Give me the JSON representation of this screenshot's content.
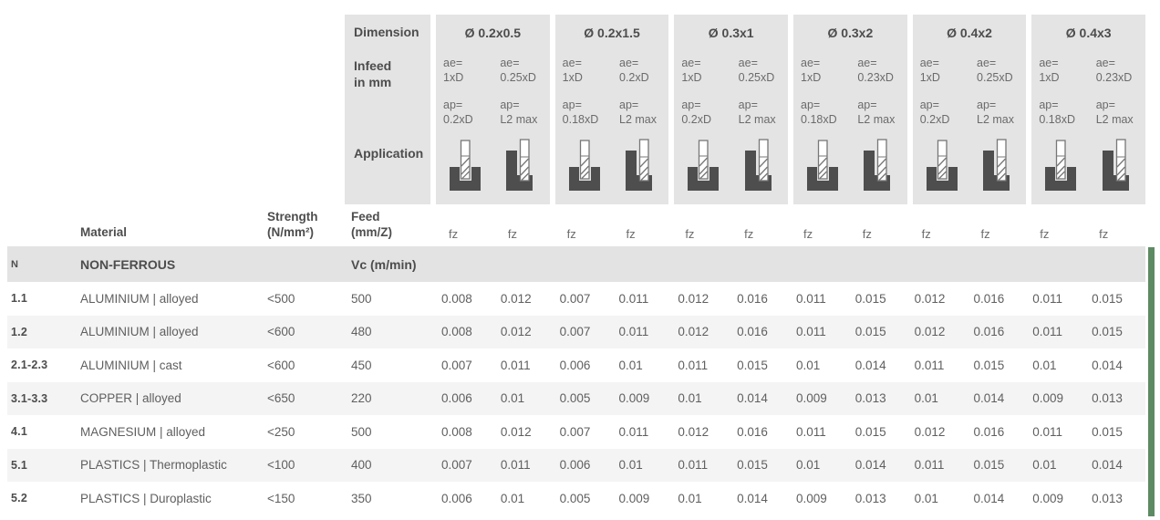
{
  "colors": {
    "accent_green": "#5d8a63",
    "header_bg": "#e4e4e4",
    "section_bg": "#e3e3e3",
    "stripe_bg": "#f4f4f4",
    "icon_dark": "#4e4e4e"
  },
  "header": {
    "dimension_label": "Dimension",
    "infeed_label_line1": "Infeed",
    "infeed_label_line2": "in mm",
    "application_label": "Application",
    "groups": [
      {
        "dimension": "Ø 0.2x0.5",
        "columns": [
          {
            "ae_label": "ae=",
            "ae_value": "1xD",
            "ap_label": "ap=",
            "ap_value": "0.2xD",
            "icon": "slot-milling-icon"
          },
          {
            "ae_label": "ae=",
            "ae_value": "0.25xD",
            "ap_label": "ap=",
            "ap_value": "L2 max",
            "icon": "side-milling-icon"
          }
        ]
      },
      {
        "dimension": "Ø 0.2x1.5",
        "columns": [
          {
            "ae_label": "ae=",
            "ae_value": "1xD",
            "ap_label": "ap=",
            "ap_value": "0.18xD",
            "icon": "slot-milling-icon"
          },
          {
            "ae_label": "ae=",
            "ae_value": "0.2xD",
            "ap_label": "ap=",
            "ap_value": "L2 max",
            "icon": "side-milling-icon"
          }
        ]
      },
      {
        "dimension": "Ø 0.3x1",
        "columns": [
          {
            "ae_label": "ae=",
            "ae_value": "1xD",
            "ap_label": "ap=",
            "ap_value": "0.2xD",
            "icon": "slot-milling-icon"
          },
          {
            "ae_label": "ae=",
            "ae_value": "0.25xD",
            "ap_label": "ap=",
            "ap_value": "L2 max",
            "icon": "side-milling-icon"
          }
        ]
      },
      {
        "dimension": "Ø 0.3x2",
        "columns": [
          {
            "ae_label": "ae=",
            "ae_value": "1xD",
            "ap_label": "ap=",
            "ap_value": "0.18xD",
            "icon": "slot-milling-icon"
          },
          {
            "ae_label": "ae=",
            "ae_value": "0.23xD",
            "ap_label": "ap=",
            "ap_value": "L2 max",
            "icon": "side-milling-icon"
          }
        ]
      },
      {
        "dimension": "Ø 0.4x2",
        "columns": [
          {
            "ae_label": "ae=",
            "ae_value": "1xD",
            "ap_label": "ap=",
            "ap_value": "0.2xD",
            "icon": "slot-milling-icon"
          },
          {
            "ae_label": "ae=",
            "ae_value": "0.25xD",
            "ap_label": "ap=",
            "ap_value": "L2 max",
            "icon": "side-milling-icon"
          }
        ]
      },
      {
        "dimension": "Ø 0.4x3",
        "columns": [
          {
            "ae_label": "ae=",
            "ae_value": "1xD",
            "ap_label": "ap=",
            "ap_value": "0.18xD",
            "icon": "slot-milling-icon"
          },
          {
            "ae_label": "ae=",
            "ae_value": "0.23xD",
            "ap_label": "ap=",
            "ap_value": "L2 max",
            "icon": "side-milling-icon"
          }
        ]
      }
    ]
  },
  "table": {
    "material_header": "Material",
    "strength_header_line1": "Strength",
    "strength_header_line2": "(N/mm²)",
    "feed_header_line1": "Feed",
    "feed_header_line2": "(mm/Z)",
    "fz_label": "fz",
    "section": {
      "id": "N",
      "name": "NON-FERROUS",
      "vc_label": "Vc (m/min)"
    },
    "rows": [
      {
        "id": "1.1",
        "material": "ALUMINIUM | alloyed",
        "strength": "<500",
        "vc": "500",
        "values": [
          "0.008",
          "0.012",
          "0.007",
          "0.011",
          "0.012",
          "0.016",
          "0.011",
          "0.015",
          "0.012",
          "0.016",
          "0.011",
          "0.015"
        ]
      },
      {
        "id": "1.2",
        "material": "ALUMINIUM | alloyed",
        "strength": "<600",
        "vc": "480",
        "values": [
          "0.008",
          "0.012",
          "0.007",
          "0.011",
          "0.012",
          "0.016",
          "0.011",
          "0.015",
          "0.012",
          "0.016",
          "0.011",
          "0.015"
        ]
      },
      {
        "id": "2.1-2.3",
        "material": "ALUMINIUM | cast",
        "strength": "<600",
        "vc": "450",
        "values": [
          "0.007",
          "0.011",
          "0.006",
          "0.01",
          "0.011",
          "0.015",
          "0.01",
          "0.014",
          "0.011",
          "0.015",
          "0.01",
          "0.014"
        ]
      },
      {
        "id": "3.1-3.3",
        "material": "COPPER | alloyed",
        "strength": "<650",
        "vc": "220",
        "values": [
          "0.006",
          "0.01",
          "0.005",
          "0.009",
          "0.01",
          "0.014",
          "0.009",
          "0.013",
          "0.01",
          "0.014",
          "0.009",
          "0.013"
        ]
      },
      {
        "id": "4.1",
        "material": "MAGNESIUM | alloyed",
        "strength": "<250",
        "vc": "500",
        "values": [
          "0.008",
          "0.012",
          "0.007",
          "0.011",
          "0.012",
          "0.016",
          "0.011",
          "0.015",
          "0.012",
          "0.016",
          "0.011",
          "0.015"
        ]
      },
      {
        "id": "5.1",
        "material": "PLASTICS | Thermoplastic",
        "strength": "<100",
        "vc": "400",
        "values": [
          "0.007",
          "0.011",
          "0.006",
          "0.01",
          "0.011",
          "0.015",
          "0.01",
          "0.014",
          "0.011",
          "0.015",
          "0.01",
          "0.014"
        ]
      },
      {
        "id": "5.2",
        "material": "PLASTICS | Duroplastic",
        "strength": "<150",
        "vc": "350",
        "values": [
          "0.006",
          "0.01",
          "0.005",
          "0.009",
          "0.01",
          "0.014",
          "0.009",
          "0.013",
          "0.01",
          "0.014",
          "0.009",
          "0.013"
        ]
      }
    ]
  }
}
